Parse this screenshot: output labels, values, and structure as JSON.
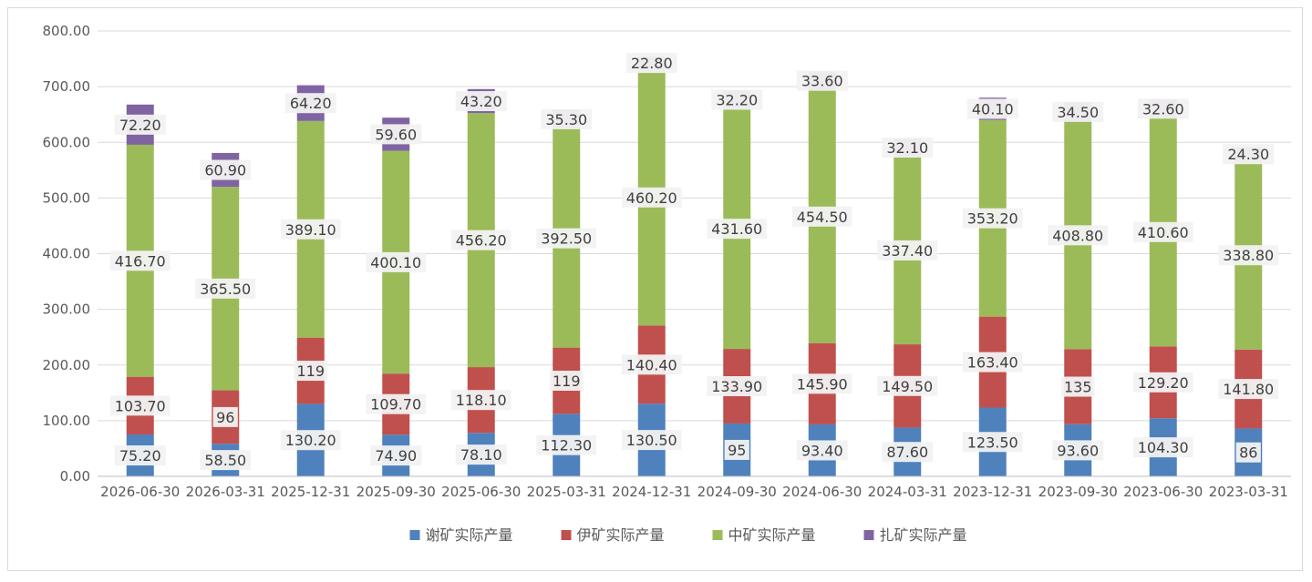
{
  "chart_data": {
    "type": "bar",
    "stacked": true,
    "categories": [
      "2026-06-30",
      "2026-03-31",
      "2025-12-31",
      "2025-09-30",
      "2025-06-30",
      "2025-03-31",
      "2024-12-31",
      "2024-09-30",
      "2024-06-30",
      "2024-03-31",
      "2023-12-31",
      "2023-09-30",
      "2023-06-30",
      "2023-03-31"
    ],
    "series": [
      {
        "name": "谢矿实际产量",
        "color": "#4f81bd",
        "values": [
          75.2,
          58.5,
          130.2,
          74.9,
          78.1,
          112.3,
          130.5,
          95,
          93.4,
          87.6,
          123.5,
          93.6,
          104.3,
          86
        ],
        "labels": [
          "75.20",
          "58.50",
          "130.20",
          "74.90",
          "78.10",
          "112.30",
          "130.50",
          "95",
          "93.40",
          "87.60",
          "123.50",
          "93.60",
          "104.30",
          "86"
        ]
      },
      {
        "name": "伊矿实际产量",
        "color": "#c0504d",
        "values": [
          103.7,
          96,
          119,
          109.7,
          118.1,
          119,
          140.4,
          133.9,
          145.9,
          149.5,
          163.4,
          135,
          129.2,
          141.8
        ],
        "labels": [
          "103.70",
          "96",
          "119",
          "109.70",
          "118.10",
          "119",
          "140.40",
          "133.90",
          "145.90",
          "149.50",
          "163.40",
          "135",
          "129.20",
          "141.80"
        ]
      },
      {
        "name": "中矿实际产量",
        "color": "#9bbb59",
        "values": [
          416.7,
          365.5,
          389.1,
          400.1,
          456.2,
          392.5,
          460.2,
          431.6,
          454.5,
          337.4,
          353.2,
          408.8,
          410.6,
          338.8
        ],
        "labels": [
          "416.70",
          "365.50",
          "389.10",
          "400.10",
          "456.20",
          "392.50",
          "460.20",
          "431.60",
          "454.50",
          "337.40",
          "353.20",
          "408.80",
          "410.60",
          "338.80"
        ]
      },
      {
        "name": "扎矿实际产量",
        "color": "#8064a2",
        "values": [
          72.2,
          60.9,
          64.2,
          59.6,
          43.2,
          35.3,
          22.8,
          32.2,
          33.6,
          32.1,
          40.1,
          34.5,
          32.6,
          24.3
        ],
        "labels": [
          "72.20",
          "60.90",
          "64.20",
          "59.60",
          "43.20",
          "35.30",
          "22.80",
          "32.20",
          "33.60",
          "32.10",
          "40.10",
          "34.50",
          "32.60",
          "24.30"
        ]
      }
    ],
    "yticks": [
      "0.00",
      "100.00",
      "200.00",
      "300.00",
      "400.00",
      "500.00",
      "600.00",
      "700.00",
      "800.00"
    ],
    "ylim": [
      0,
      800
    ],
    "grid": true,
    "legend": "bottom"
  }
}
